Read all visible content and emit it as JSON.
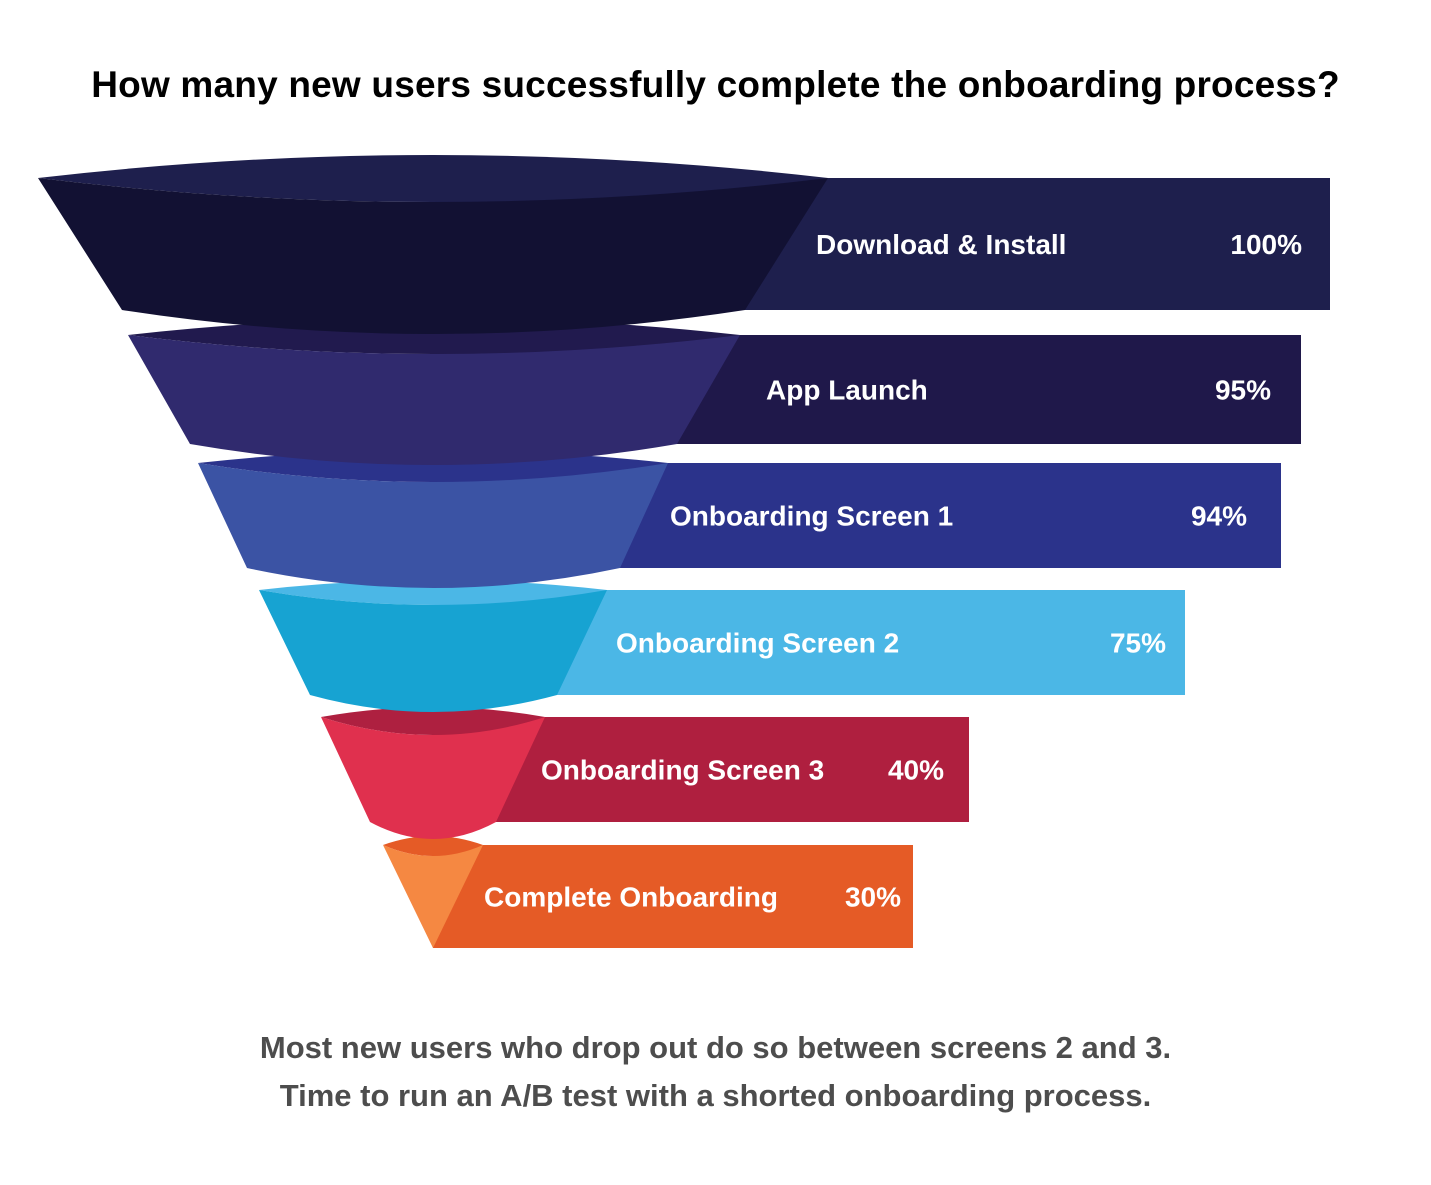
{
  "chart_data": {
    "type": "funnel",
    "title": "How many new users successfully complete the onboarding process?",
    "stages": [
      {
        "label": "Download & Install",
        "value": 100,
        "value_label": "100%",
        "bar_color": "#1e1f4d",
        "front_color": "#121133",
        "cap_color": "#1e1f4d"
      },
      {
        "label": "App Launch",
        "value": 95,
        "value_label": "95%",
        "bar_color": "#1f184a",
        "front_color": "#302a6e",
        "cap_color": "#211a4e"
      },
      {
        "label": "Onboarding Screen 1",
        "value": 94,
        "value_label": "94%",
        "bar_color": "#2b338b",
        "front_color": "#3b53a4",
        "cap_color": "#2b338b"
      },
      {
        "label": "Onboarding Screen 2",
        "value": 75,
        "value_label": "75%",
        "bar_color": "#4bb7e6",
        "front_color": "#17a3d2",
        "cap_color": "#4bb7e6"
      },
      {
        "label": "Onboarding Screen 3",
        "value": 40,
        "value_label": "40%",
        "bar_color": "#af1f3f",
        "front_color": "#e0304e",
        "cap_color": "#ae2040"
      },
      {
        "label": "Complete Onboarding",
        "value": 30,
        "value_label": "30%",
        "bar_color": "#e55b26",
        "front_color": "#f58842",
        "cap_color": "#e55b26"
      }
    ]
  },
  "footer": {
    "line1": "Most new users who drop out do so between screens 2 and 3.",
    "line2": "Time to run an A/B test with a shorted onboarding process."
  }
}
